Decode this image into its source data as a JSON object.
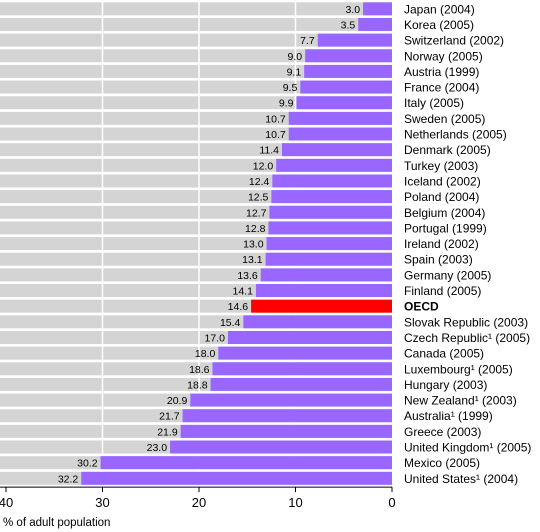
{
  "chart_data": {
    "type": "bar",
    "orientation": "horizontal",
    "direction": "right-to-left",
    "categories": [
      "Japan (2004)",
      "Korea (2005)",
      "Switzerland (2002)",
      "Norway (2005)",
      "Austria (1999)",
      "France (2004)",
      "Italy (2005)",
      "Sweden (2005)",
      "Netherlands (2005)",
      "Denmark (2005)",
      "Turkey (2003)",
      "Iceland (2002)",
      "Poland (2004)",
      "Belgium (2004)",
      "Portugal (1999)",
      "Ireland (2002)",
      "Spain (2003)",
      "Germany (2005)",
      "Finland (2005)",
      "OECD",
      "Slovak Republic (2003)",
      "Czech Republic¹ (2005)",
      "Canada (2005)",
      "Luxembourg¹ (2005)",
      "Hungary (2003)",
      "New Zealand¹ (2003)",
      "Australia¹ (1999)",
      "Greece (2003)",
      "United Kingdom¹ (2005)",
      "Mexico (2005)",
      "United States¹ (2004)"
    ],
    "values": [
      3.0,
      3.5,
      7.7,
      9.0,
      9.1,
      9.5,
      9.9,
      10.7,
      10.7,
      11.4,
      12.0,
      12.4,
      12.5,
      12.7,
      12.8,
      13.0,
      13.1,
      13.6,
      14.1,
      14.6,
      15.4,
      17.0,
      18.0,
      18.6,
      18.8,
      20.9,
      21.7,
      21.9,
      23.0,
      30.2,
      32.2
    ],
    "value_labels": [
      "3.0",
      "3.5",
      "7.7",
      "9.0",
      "9.1",
      "9.5",
      "9.9",
      "10.7",
      "10.7",
      "11.4",
      "12.0",
      "12.4",
      "12.5",
      "12.7",
      "12.8",
      "13.0",
      "13.1",
      "13.6",
      "14.1",
      "14.6",
      "15.4",
      "17.0",
      "18.0",
      "18.6",
      "18.8",
      "20.9",
      "21.7",
      "21.9",
      "23.0",
      "30.2",
      "32.2"
    ],
    "highlight": "OECD",
    "xlim": [
      0,
      40
    ],
    "xticks": [
      "40",
      "30",
      "20",
      "10",
      "0"
    ],
    "xlabel": "% of adult population",
    "grid": true,
    "colors": {
      "bar": "#9966ff",
      "highlight": "#ff0000",
      "track": "#d4d4d4",
      "gridline": "#ffffff",
      "axis": "#000000"
    }
  }
}
